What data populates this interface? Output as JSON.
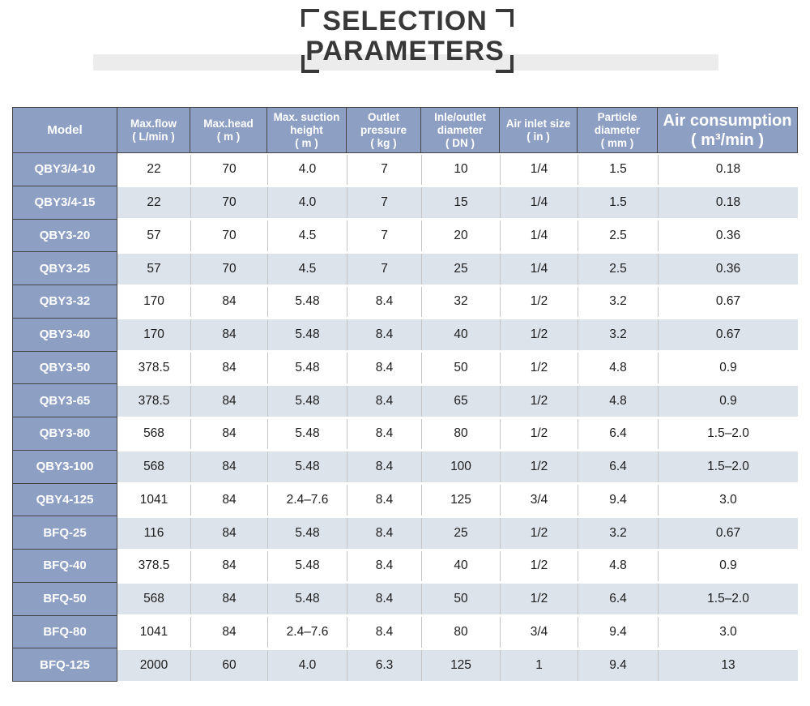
{
  "title": {
    "line1": "SELECTION",
    "line2": "PARAMETERS"
  },
  "table": {
    "header": [
      {
        "lines": [
          "Model"
        ]
      },
      {
        "lines": [
          "Max.flow",
          "( L/min )"
        ]
      },
      {
        "lines": [
          "Max.head",
          "( m )"
        ]
      },
      {
        "lines": [
          "Max. suction",
          "height",
          "( m )"
        ]
      },
      {
        "lines": [
          "Outlet",
          "pressure",
          "( kg )"
        ]
      },
      {
        "lines": [
          "Inle/outlet",
          "diameter",
          "( DN )"
        ]
      },
      {
        "lines": [
          "Air inlet size",
          "( in )"
        ]
      },
      {
        "lines": [
          "Particle",
          "diameter",
          "( mm )"
        ]
      },
      {
        "lines": [
          "Air consumption",
          "( m³/min )"
        ]
      }
    ],
    "rows": [
      {
        "model": "QBY3/4-10",
        "values": [
          "22",
          "70",
          "4.0",
          "7",
          "10",
          "1/4",
          "1.5",
          "0.18"
        ]
      },
      {
        "model": "QBY3/4-15",
        "values": [
          "22",
          "70",
          "4.0",
          "7",
          "15",
          "1/4",
          "1.5",
          "0.18"
        ]
      },
      {
        "model": "QBY3-20",
        "values": [
          "57",
          "70",
          "4.5",
          "7",
          "20",
          "1/4",
          "2.5",
          "0.36"
        ]
      },
      {
        "model": "QBY3-25",
        "values": [
          "57",
          "70",
          "4.5",
          "7",
          "25",
          "1/4",
          "2.5",
          "0.36"
        ]
      },
      {
        "model": "QBY3-32",
        "values": [
          "170",
          "84",
          "5.48",
          "8.4",
          "32",
          "1/2",
          "3.2",
          "0.67"
        ]
      },
      {
        "model": "QBY3-40",
        "values": [
          "170",
          "84",
          "5.48",
          "8.4",
          "40",
          "1/2",
          "3.2",
          "0.67"
        ]
      },
      {
        "model": "QBY3-50",
        "values": [
          "378.5",
          "84",
          "5.48",
          "8.4",
          "50",
          "1/2",
          "4.8",
          "0.9"
        ]
      },
      {
        "model": "QBY3-65",
        "values": [
          "378.5",
          "84",
          "5.48",
          "8.4",
          "65",
          "1/2",
          "4.8",
          "0.9"
        ]
      },
      {
        "model": "QBY3-80",
        "values": [
          "568",
          "84",
          "5.48",
          "8.4",
          "80",
          "1/2",
          "6.4",
          "1.5–2.0"
        ]
      },
      {
        "model": "QBY3-100",
        "values": [
          "568",
          "84",
          "5.48",
          "8.4",
          "100",
          "1/2",
          "6.4",
          "1.5–2.0"
        ]
      },
      {
        "model": "QBY4-125",
        "values": [
          "1041",
          "84",
          "2.4–7.6",
          "8.4",
          "125",
          "3/4",
          "9.4",
          "3.0"
        ]
      },
      {
        "model": "BFQ-25",
        "values": [
          "116",
          "84",
          "5.48",
          "8.4",
          "25",
          "1/2",
          "3.2",
          "0.67"
        ]
      },
      {
        "model": "BFQ-40",
        "values": [
          "378.5",
          "84",
          "5.48",
          "8.4",
          "40",
          "1/2",
          "4.8",
          "0.9"
        ]
      },
      {
        "model": "BFQ-50",
        "values": [
          "568",
          "84",
          "5.48",
          "8.4",
          "50",
          "1/2",
          "6.4",
          "1.5–2.0"
        ]
      },
      {
        "model": "BFQ-80",
        "values": [
          "1041",
          "84",
          "2.4–7.6",
          "8.4",
          "80",
          "3/4",
          "9.4",
          "3.0"
        ]
      },
      {
        "model": "BFQ-125",
        "values": [
          "2000",
          "60",
          "4.0",
          "6.3",
          "125",
          "1",
          "9.4",
          "13"
        ]
      }
    ]
  },
  "colors": {
    "header_blue": "#8d9fc3",
    "row_shaded": "#dde3ea",
    "row_white": "#ffffff",
    "dark_border": "#454545",
    "divider_gray": "#c4c4c4",
    "title_text": "#383838",
    "title_bar": "#ececec"
  }
}
